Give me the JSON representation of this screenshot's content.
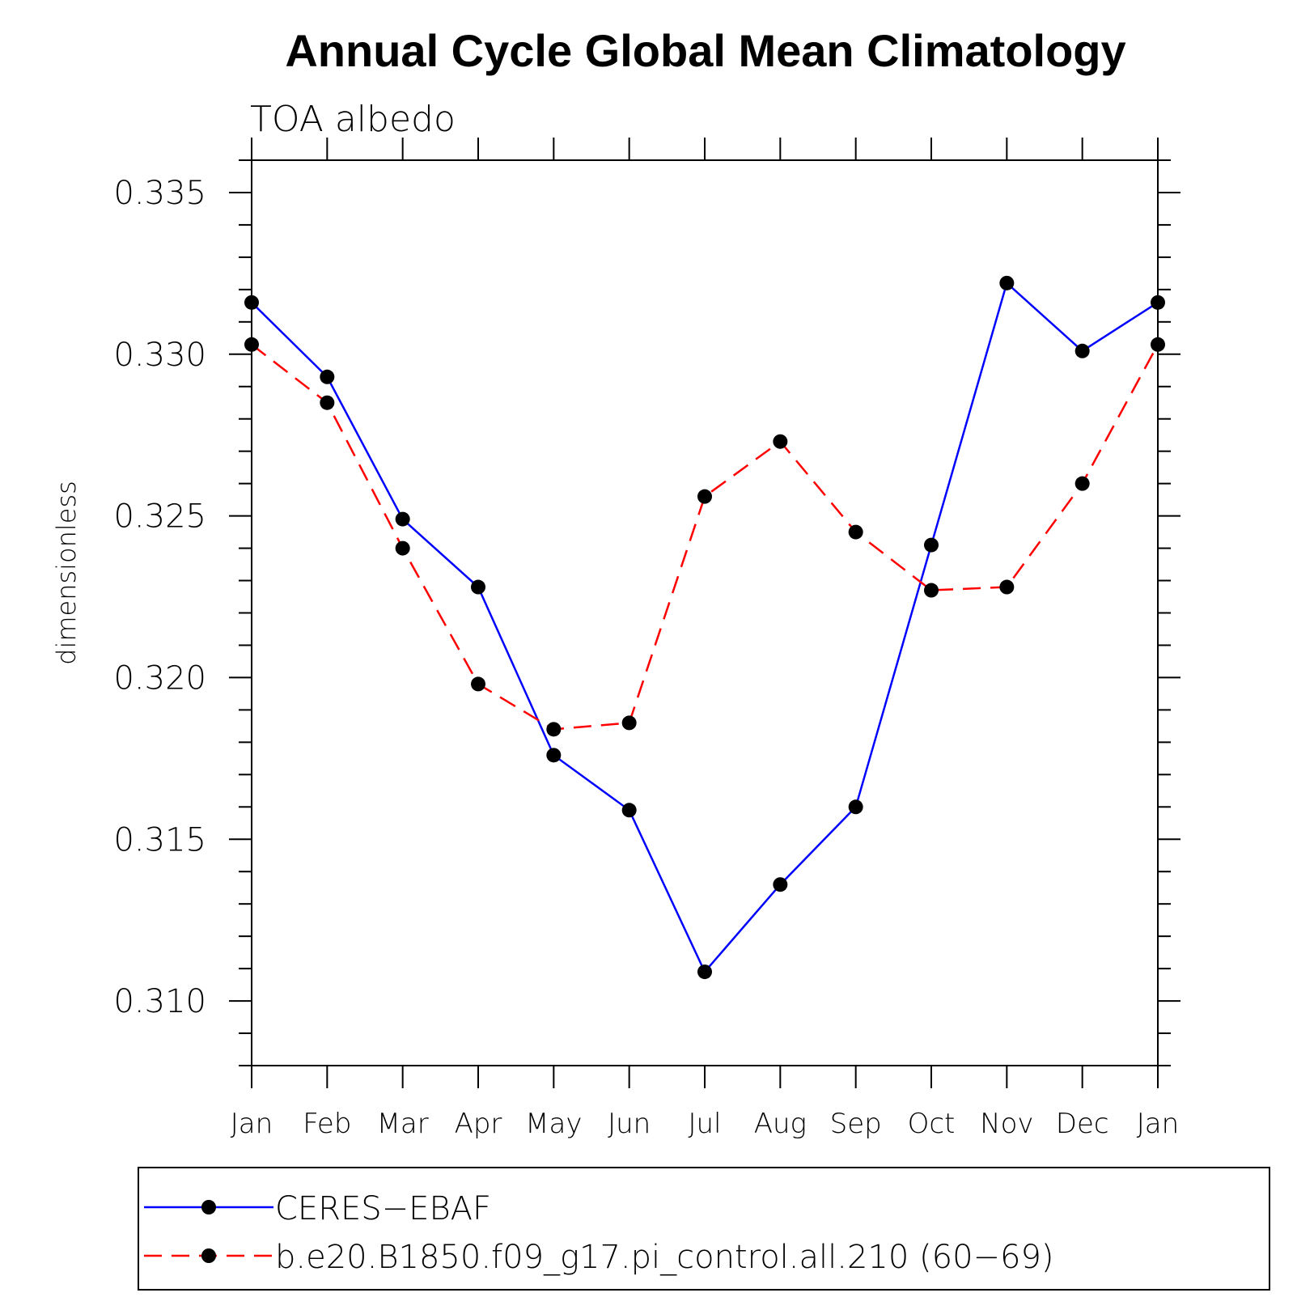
{
  "chart_data": {
    "type": "line",
    "title": "Annual Cycle Global Mean Climatology",
    "subtitle": "TOA albedo",
    "xlabel": "",
    "ylabel": "dimensionless",
    "categories": [
      "Jan",
      "Feb",
      "Mar",
      "Apr",
      "May",
      "Jun",
      "Jul",
      "Aug",
      "Sep",
      "Oct",
      "Nov",
      "Dec",
      "Jan"
    ],
    "ylim": [
      0.308,
      0.336
    ],
    "yticks": [
      "0.310",
      "0.315",
      "0.320",
      "0.325",
      "0.330",
      "0.335"
    ],
    "ytick_values": [
      0.31,
      0.315,
      0.32,
      0.325,
      0.33,
      0.335
    ],
    "grid": false,
    "legend_position": "bottom",
    "series": [
      {
        "name": "CERES−EBAF",
        "color": "#0000ff",
        "dash": "solid",
        "values": [
          0.3316,
          0.3293,
          0.3249,
          0.3228,
          0.3176,
          0.3159,
          0.3109,
          0.3136,
          0.316,
          0.3241,
          0.3322,
          0.3301,
          0.3316
        ]
      },
      {
        "name": "b.e20.B1850.f09_g17.pi_control.all.210 (60−69)",
        "color": "#ff0000",
        "dash": "dashed",
        "values": [
          0.3303,
          0.3285,
          0.324,
          0.3198,
          0.3184,
          0.3186,
          0.3256,
          0.3273,
          0.3245,
          0.3227,
          0.3228,
          0.326,
          0.3303
        ]
      }
    ]
  }
}
